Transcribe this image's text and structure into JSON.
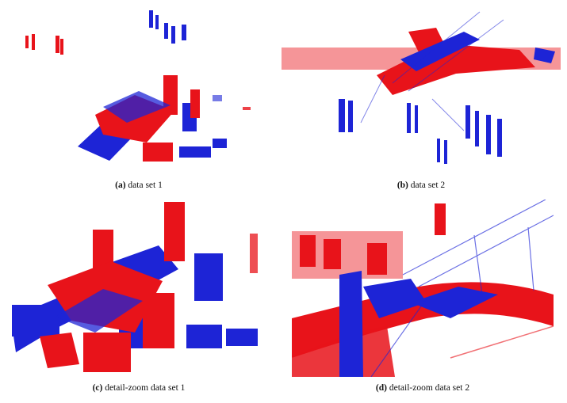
{
  "figure": {
    "panels": [
      {
        "id": "a",
        "letter": "(a)",
        "caption": "data set 1"
      },
      {
        "id": "b",
        "letter": "(b)",
        "caption": "data set 2"
      },
      {
        "id": "c",
        "letter": "(c)",
        "caption": "detail-zoom data set 1"
      },
      {
        "id": "d",
        "letter": "(d)",
        "caption": "detail-zoom data set 2"
      }
    ],
    "colors": {
      "source_cloud": "#e8131a",
      "target_cloud": "#1d24d6"
    }
  }
}
